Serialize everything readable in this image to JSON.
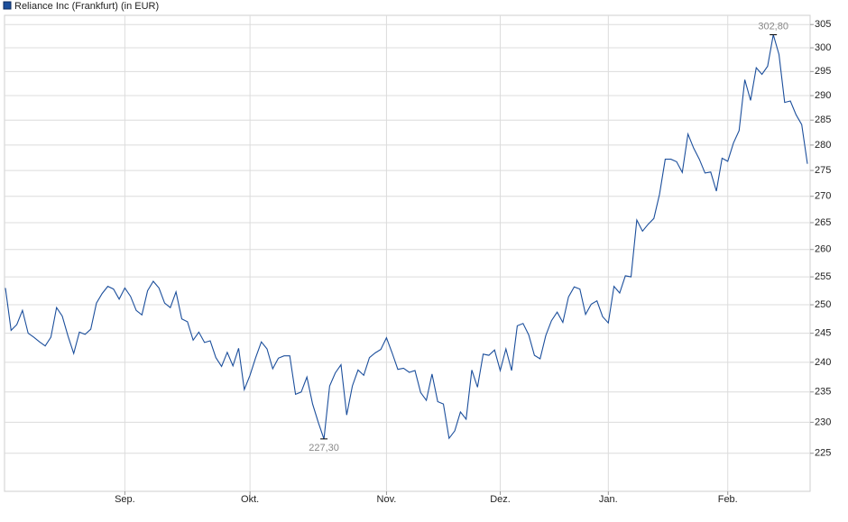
{
  "chart_data": {
    "type": "line",
    "series": [
      {
        "name": "Reliance Inc (Frankfurt) (in EUR)",
        "color": "#1c4f9c",
        "values": [
          253,
          245.5,
          246.5,
          249,
          245,
          244.3,
          243.5,
          242.8,
          244.3,
          249.5,
          248,
          244.5,
          241.5,
          245.2,
          244.8,
          245.7,
          250.3,
          252,
          253.3,
          252.8,
          251,
          253,
          251.5,
          249,
          248.2,
          252.5,
          254.2,
          253,
          250.3,
          249.5,
          252.3,
          247.5,
          247,
          243.8,
          245.2,
          243.4,
          243.7,
          240.8,
          239.3,
          241.7,
          239.4,
          242.4,
          235.4,
          237.8,
          240.8,
          243.5,
          242.3,
          238.9,
          240.7,
          241.1,
          241.1,
          234.6,
          235,
          237.5,
          233,
          230,
          227.3,
          236,
          238.2,
          239.6,
          231.2,
          236,
          238.7,
          237.8,
          240.8,
          241.6,
          242.2,
          244.2,
          241.6,
          238.8,
          239,
          238.3,
          238.6,
          234.9,
          233.6,
          238,
          233.4,
          233,
          227.4,
          228.6,
          231.7,
          230.5,
          238.7,
          235.8,
          241.4,
          241.2,
          242.1,
          238.6,
          242.3,
          238.6,
          246.3,
          246.7,
          244.7,
          241.2,
          240.6,
          244.6,
          247.2,
          248.7,
          246.9,
          251.4,
          253.2,
          252.8,
          248.3,
          250.1,
          250.7,
          247.9,
          246.8,
          253.3,
          252.1,
          255.2,
          255,
          265.5,
          263.4,
          264.7,
          265.8,
          270.4,
          277.2,
          277.2,
          276.7,
          274.6,
          282.2,
          279.4,
          277.2,
          274.5,
          274.7,
          271,
          277.4,
          276.8,
          280.4,
          282.9,
          293.3,
          289,
          295.8,
          294.4,
          296.1,
          302.8,
          298.6,
          288.6,
          288.9,
          286.1,
          284.1,
          276.3
        ],
        "value_labels": [
          null,
          null,
          null,
          null,
          null,
          null,
          null,
          null,
          null,
          null,
          null,
          null,
          null,
          null,
          null,
          null,
          null,
          null,
          null,
          null,
          null,
          null,
          null,
          null,
          null,
          null,
          null,
          null,
          null,
          null,
          null,
          null,
          null,
          null,
          null,
          null,
          null,
          null,
          null,
          null,
          null,
          null,
          null,
          null,
          null,
          null,
          null,
          null,
          null,
          null,
          null,
          null,
          null,
          null,
          null,
          null,
          "227,30",
          null,
          null,
          null,
          null,
          null,
          null,
          null,
          null,
          null,
          null,
          null,
          null,
          null,
          null,
          null,
          null,
          null,
          null,
          null,
          null,
          null,
          null,
          null,
          null,
          null,
          null,
          null,
          null,
          null,
          null,
          null,
          null,
          null,
          null,
          null,
          null,
          null,
          null,
          null,
          null,
          null,
          null,
          null,
          null,
          null,
          null,
          null,
          null,
          null,
          null,
          null,
          null,
          null,
          null,
          null,
          null,
          null,
          null,
          null,
          null,
          null,
          null,
          null,
          null,
          null,
          null,
          null,
          null,
          null,
          null,
          null,
          null,
          null,
          null,
          null,
          null,
          null,
          null,
          "302,80",
          null,
          null,
          null,
          null,
          null,
          null
        ]
      }
    ],
    "categories": [
      null,
      null,
      null,
      null,
      null,
      null,
      null,
      null,
      null,
      null,
      null,
      null,
      null,
      null,
      null,
      null,
      null,
      null,
      null,
      null,
      null,
      "Sep.",
      null,
      null,
      null,
      null,
      null,
      null,
      null,
      null,
      null,
      null,
      null,
      null,
      null,
      null,
      null,
      null,
      null,
      null,
      null,
      null,
      null,
      "Okt.",
      null,
      null,
      null,
      null,
      null,
      null,
      null,
      null,
      null,
      null,
      null,
      null,
      null,
      null,
      null,
      null,
      null,
      null,
      null,
      null,
      null,
      null,
      null,
      "Nov.",
      null,
      null,
      null,
      null,
      null,
      null,
      null,
      null,
      null,
      null,
      null,
      null,
      null,
      null,
      null,
      null,
      null,
      null,
      null,
      "Dez.",
      null,
      null,
      null,
      null,
      null,
      null,
      null,
      null,
      null,
      null,
      null,
      null,
      null,
      null,
      null,
      null,
      null,
      null,
      "Jan.",
      null,
      null,
      null,
      null,
      null,
      null,
      null,
      null,
      null,
      null,
      null,
      null,
      null,
      null,
      null,
      null,
      null,
      null,
      null,
      null,
      "Feb.",
      null,
      null,
      null,
      null,
      null,
      null,
      null,
      null,
      null,
      null,
      null,
      null,
      null,
      null
    ],
    "ylim": [
      219,
      307
    ],
    "log_scale": true,
    "yticks": [
      225,
      230,
      235,
      240,
      245,
      250,
      255,
      260,
      265,
      270,
      275,
      280,
      285,
      290,
      295,
      300,
      305
    ],
    "grid": true
  }
}
